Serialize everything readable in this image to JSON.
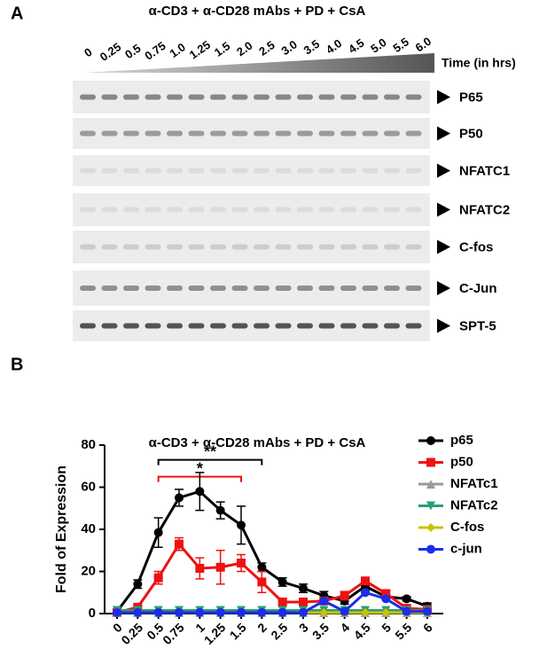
{
  "panel_a": {
    "label": "A",
    "title": "α-CD3 + α-CD28 mAbs + PD + CsA",
    "times": [
      "0",
      "0.25",
      "0.5",
      "0.75",
      "1.0",
      "1.25",
      "1.5",
      "2.0",
      "2.5",
      "3.0",
      "3.5",
      "4.0",
      "4.5",
      "5.0",
      "5.5",
      "6.0"
    ],
    "time_label": "Time (in hrs)",
    "blots": [
      "P65",
      "P50",
      "NFATC1",
      "NFATC2",
      "C-fos",
      "C-Jun",
      "SPT-5"
    ]
  },
  "chart_data": {
    "type": "line",
    "label": "B",
    "title": "α-CD3 + α-CD28 mAbs + PD + CsA",
    "y_label": "Fold of Expression",
    "categories": [
      "0",
      "0.25",
      "0.5",
      "0.75",
      "1",
      "1.25",
      "1.5",
      "2",
      "2.5",
      "3",
      "3.5",
      "4",
      "4.5",
      "5",
      "5.5",
      "6"
    ],
    "ylim": [
      0,
      80
    ],
    "yticks": [
      0,
      20,
      40,
      60,
      80
    ],
    "series": [
      {
        "name": "p65",
        "color": "#000000",
        "marker": "circle",
        "values": [
          1,
          14,
          38.5,
          55,
          58,
          49,
          42,
          22,
          15,
          12,
          8.5,
          6,
          13,
          8,
          7,
          3.5
        ],
        "errors": [
          0.5,
          2,
          7,
          4,
          9,
          4,
          9,
          2,
          2,
          2,
          2,
          1.5,
          2,
          1,
          1,
          1.5
        ]
      },
      {
        "name": "p50",
        "color": "#ee1111",
        "marker": "square",
        "values": [
          0.5,
          3,
          17,
          33,
          21.5,
          22,
          24,
          15,
          5.5,
          5.5,
          6,
          8.5,
          15.5,
          9.5,
          2.5,
          2
        ],
        "errors": [
          0.5,
          1,
          3,
          3,
          5,
          8,
          4,
          5,
          1.5,
          1,
          1,
          2,
          1.5,
          1.5,
          1,
          1
        ]
      },
      {
        "name": "NFATc1",
        "color": "#999999",
        "marker": "triangle-up",
        "values": [
          0.5,
          0.5,
          0.5,
          0.5,
          0.5,
          0.5,
          0.5,
          0.5,
          0.5,
          0.5,
          0.5,
          0.5,
          0.5,
          0.5,
          0.5,
          0.5
        ]
      },
      {
        "name": "NFATc2",
        "color": "#2a9d76",
        "marker": "triangle-down",
        "values": [
          1.5,
          1.5,
          1.5,
          1.5,
          1.5,
          1.5,
          1.5,
          1.5,
          1.5,
          1.5,
          1.5,
          1.5,
          1.5,
          1.5,
          1.5,
          1.5
        ]
      },
      {
        "name": "C-fos",
        "color": "#c9c400",
        "marker": "diamond",
        "values": [
          0.5,
          0.5,
          0.5,
          0.5,
          0.5,
          0.5,
          0.5,
          0.5,
          0.5,
          0.5,
          0.5,
          0.5,
          0.5,
          0.5,
          0.5,
          0.5
        ]
      },
      {
        "name": "c-jun",
        "color": "#1a2ee6",
        "marker": "circle",
        "values": [
          0.5,
          0.5,
          0.5,
          0.5,
          0.5,
          0.5,
          0.5,
          0.5,
          0.5,
          0.5,
          6,
          1,
          10,
          7,
          1,
          1
        ]
      }
    ],
    "annotations": [
      {
        "text": "**",
        "from": 2,
        "to": 7,
        "y": 73,
        "color": "#000000"
      },
      {
        "text": "*",
        "from": 2,
        "to": 6,
        "y": 65,
        "color": "#ee1111"
      }
    ]
  }
}
